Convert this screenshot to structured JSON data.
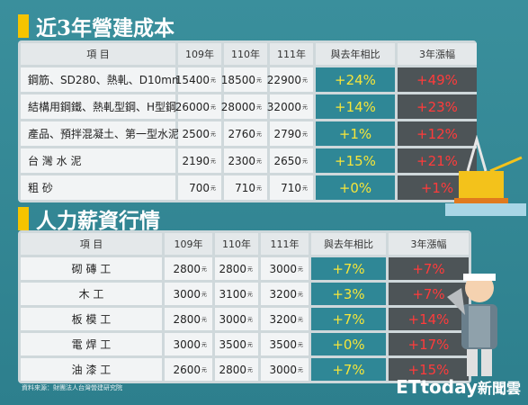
{
  "unit": "元",
  "sections": [
    {
      "title": "近3年營建成本",
      "header": [
        "項 目",
        "109年",
        "110年",
        "111年",
        "與去年相比",
        "3年漲幅"
      ],
      "rows": [
        [
          "鋼筋、SD280、熱軋、D10mm",
          15400,
          18500,
          22900,
          "+24%",
          "+49%"
        ],
        [
          "結構用鋼鐵、熱軋型鋼、H型鋼",
          26000,
          28000,
          32000,
          "+14%",
          "+23%"
        ],
        [
          "產品、預拌混凝土、第一型水泥",
          2500,
          2760,
          2790,
          "+1%",
          "+12%"
        ],
        [
          "台 灣 水 泥",
          2190,
          2300,
          2650,
          "+15%",
          "+21%"
        ],
        [
          "粗 砂",
          700,
          710,
          710,
          "+0%",
          "+1%"
        ]
      ]
    },
    {
      "title": "人力薪資行情",
      "header": [
        "項 目",
        "109年",
        "110年",
        "111年",
        "與去年相比",
        "3年漲幅"
      ],
      "rows": [
        [
          "砌 磚 工",
          2800,
          2800,
          3000,
          "+7%",
          "+7%"
        ],
        [
          "木 工",
          3000,
          3100,
          3200,
          "+3%",
          "+7%"
        ],
        [
          "板 模 工",
          2800,
          3000,
          3200,
          "+7%",
          "+14%"
        ],
        [
          "電 焊 工",
          3000,
          3500,
          3500,
          "+0%",
          "+17%"
        ],
        [
          "油 漆 工",
          2600,
          2800,
          3000,
          "+7%",
          "+15%"
        ]
      ]
    }
  ],
  "footer": {
    "source": "資料來源：財團法人台灣營建研究院",
    "logo": "ETtoday",
    "logo_suffix": "新聞雲"
  }
}
